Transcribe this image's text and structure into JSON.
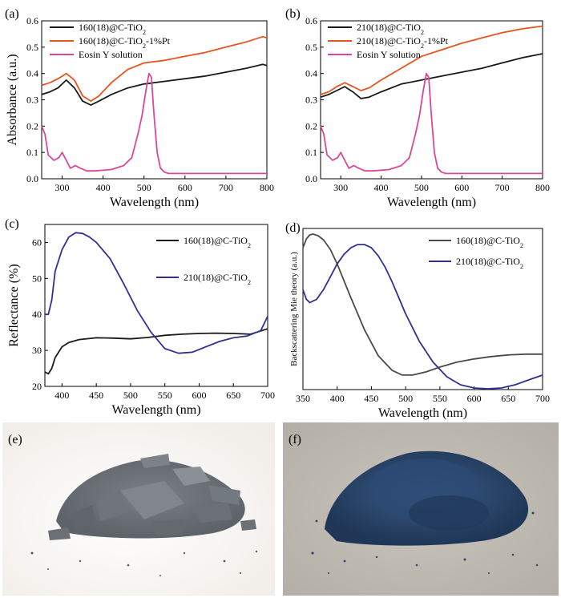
{
  "chart_data": [
    {
      "id": "a",
      "panel_label": "(a)",
      "type": "line",
      "xlabel": "Wavelength (nm)",
      "ylabel": "Absorbance (a.u.)",
      "xlim": [
        250,
        800
      ],
      "ylim": [
        0,
        0.6
      ],
      "xticks": [
        300,
        400,
        500,
        600,
        700,
        800
      ],
      "yticks": [
        0.0,
        0.1,
        0.2,
        0.3,
        0.4,
        0.5,
        0.6
      ],
      "ytick_labels": [
        "0.0",
        "0.1",
        "0.2",
        "0.3",
        "0.4",
        "0.5",
        "0.6"
      ],
      "legend": "top-left",
      "series": [
        {
          "name": "160(18)@C-TiO",
          "name_sub": "2",
          "color": "#1a1a1a",
          "x": [
            250,
            270,
            290,
            310,
            330,
            350,
            370,
            390,
            420,
            460,
            500,
            550,
            600,
            650,
            700,
            750,
            790,
            800
          ],
          "y": [
            0.32,
            0.33,
            0.345,
            0.375,
            0.345,
            0.295,
            0.28,
            0.295,
            0.32,
            0.345,
            0.36,
            0.37,
            0.38,
            0.39,
            0.405,
            0.42,
            0.435,
            0.43
          ]
        },
        {
          "name": "160(18)@C-TiO",
          "name_sub": "2",
          "name_suffix": "-1%Pt",
          "color": "#e8541e",
          "x": [
            250,
            270,
            290,
            310,
            330,
            350,
            370,
            390,
            420,
            460,
            500,
            550,
            600,
            650,
            700,
            750,
            790,
            800
          ],
          "y": [
            0.355,
            0.365,
            0.38,
            0.4,
            0.375,
            0.315,
            0.295,
            0.315,
            0.365,
            0.415,
            0.44,
            0.45,
            0.465,
            0.48,
            0.5,
            0.52,
            0.54,
            0.535
          ]
        },
        {
          "name": "Eosin Y solution",
          "color": "#d9479a",
          "x": [
            250,
            258,
            266,
            280,
            292,
            300,
            310,
            320,
            332,
            345,
            360,
            380,
            420,
            450,
            470,
            485,
            495,
            505,
            512,
            518,
            524,
            532,
            540,
            550,
            560,
            600,
            700,
            800
          ],
          "y": [
            0.2,
            0.17,
            0.09,
            0.07,
            0.08,
            0.1,
            0.07,
            0.04,
            0.05,
            0.04,
            0.03,
            0.03,
            0.035,
            0.05,
            0.08,
            0.17,
            0.24,
            0.34,
            0.4,
            0.385,
            0.25,
            0.1,
            0.04,
            0.025,
            0.02,
            0.02,
            0.02,
            0.02
          ]
        }
      ]
    },
    {
      "id": "b",
      "panel_label": "(b)",
      "type": "line",
      "xlabel": "Wavelength (nm)",
      "ylabel": "",
      "xlim": [
        250,
        800
      ],
      "ylim": [
        0,
        0.6
      ],
      "xticks": [
        300,
        400,
        500,
        600,
        700,
        800
      ],
      "yticks": [
        0.0,
        0.1,
        0.2,
        0.3,
        0.4,
        0.5,
        0.6
      ],
      "ytick_labels": [
        "0.0",
        "0.1",
        "0.2",
        "0.3",
        "0.4",
        "0.5",
        "0.6"
      ],
      "legend": "top-left",
      "series": [
        {
          "name": "210(18)@C-TiO",
          "name_sub": "2",
          "color": "#1a1a1a",
          "x": [
            250,
            270,
            290,
            310,
            330,
            350,
            370,
            400,
            450,
            500,
            550,
            600,
            650,
            700,
            750,
            800
          ],
          "y": [
            0.31,
            0.32,
            0.335,
            0.35,
            0.33,
            0.305,
            0.31,
            0.33,
            0.36,
            0.375,
            0.39,
            0.405,
            0.42,
            0.44,
            0.46,
            0.475
          ]
        },
        {
          "name": "210(18)@C-TiO",
          "name_sub": "2",
          "name_suffix": "-1%Pt",
          "color": "#e8541e",
          "x": [
            250,
            270,
            290,
            310,
            330,
            350,
            370,
            400,
            450,
            500,
            550,
            600,
            650,
            700,
            750,
            800
          ],
          "y": [
            0.32,
            0.33,
            0.35,
            0.365,
            0.35,
            0.335,
            0.345,
            0.375,
            0.42,
            0.465,
            0.49,
            0.515,
            0.535,
            0.555,
            0.57,
            0.58
          ]
        },
        {
          "name": "Eosin Y solution",
          "color": "#d9479a",
          "x": [
            250,
            258,
            266,
            280,
            292,
            300,
            310,
            320,
            332,
            345,
            360,
            380,
            420,
            450,
            470,
            485,
            495,
            505,
            512,
            518,
            524,
            532,
            540,
            550,
            560,
            600,
            700,
            800
          ],
          "y": [
            0.2,
            0.17,
            0.09,
            0.07,
            0.08,
            0.1,
            0.07,
            0.04,
            0.05,
            0.04,
            0.03,
            0.03,
            0.035,
            0.05,
            0.08,
            0.17,
            0.24,
            0.34,
            0.4,
            0.385,
            0.25,
            0.1,
            0.04,
            0.025,
            0.02,
            0.02,
            0.02,
            0.02
          ]
        }
      ]
    },
    {
      "id": "c",
      "panel_label": "(c)",
      "type": "line",
      "xlabel": "Wavelength (nm)",
      "ylabel": "Reflectance (%)",
      "xlim": [
        375,
        700
      ],
      "ylim": [
        20,
        65
      ],
      "xticks": [
        400,
        450,
        500,
        550,
        600,
        650,
        700
      ],
      "yticks": [
        20,
        30,
        40,
        50,
        60
      ],
      "ytick_labels": [
        "20",
        "30",
        "40",
        "50",
        "60"
      ],
      "legend": "top-right",
      "series": [
        {
          "name": "160(18)@C-TiO",
          "name_sub": "2",
          "color": "#1a1a1a",
          "x": [
            375,
            380,
            385,
            390,
            400,
            410,
            425,
            450,
            475,
            500,
            525,
            550,
            575,
            600,
            625,
            650,
            675,
            700
          ],
          "y": [
            24,
            23.5,
            25,
            28,
            31,
            32.2,
            33,
            33.5,
            33.4,
            33.2,
            33.6,
            34.2,
            34.5,
            34.7,
            34.8,
            34.7,
            34.5,
            36
          ]
        },
        {
          "name": "210(18)@C-TiO",
          "name_sub": "2",
          "color": "#2e3192",
          "x": [
            375,
            380,
            385,
            390,
            400,
            410,
            420,
            430,
            440,
            450,
            470,
            490,
            510,
            530,
            550,
            570,
            590,
            610,
            630,
            650,
            670,
            690,
            700
          ],
          "y": [
            40,
            40,
            44,
            52,
            58,
            61.5,
            62.7,
            62.5,
            61.5,
            60,
            55.5,
            48.5,
            41,
            35,
            30.5,
            29.2,
            29.5,
            31,
            32.5,
            33.5,
            34,
            35.5,
            39.5
          ]
        }
      ]
    },
    {
      "id": "d",
      "panel_label": "(d)",
      "type": "line",
      "xlabel": "Wavelength (nm)",
      "ylabel": "Backscattering Mie theory (a.u.)",
      "xlim": [
        350,
        700
      ],
      "ylim": [
        0,
        1
      ],
      "xticks": [
        350,
        400,
        450,
        500,
        550,
        600,
        650,
        700
      ],
      "legend": "top-right",
      "series": [
        {
          "name": "160(18)@C-TiO",
          "name_sub": "2",
          "color": "#4a4a4a",
          "x": [
            350,
            355,
            360,
            365,
            372,
            380,
            390,
            400,
            420,
            440,
            460,
            480,
            495,
            510,
            530,
            550,
            575,
            600,
            625,
            650,
            675,
            700
          ],
          "y": [
            0.88,
            0.935,
            0.96,
            0.965,
            0.955,
            0.93,
            0.87,
            0.78,
            0.57,
            0.37,
            0.21,
            0.12,
            0.09,
            0.09,
            0.11,
            0.14,
            0.17,
            0.19,
            0.205,
            0.215,
            0.22,
            0.22
          ]
        },
        {
          "name": "210(18)@C-TiO",
          "name_sub": "2",
          "color": "#2e3192",
          "x": [
            350,
            355,
            360,
            370,
            380,
            390,
            400,
            410,
            420,
            430,
            440,
            450,
            460,
            470,
            480,
            490,
            500,
            520,
            540,
            560,
            580,
            600,
            620,
            640,
            660,
            680,
            700
          ],
          "y": [
            0.62,
            0.56,
            0.54,
            0.56,
            0.62,
            0.7,
            0.78,
            0.84,
            0.88,
            0.9,
            0.9,
            0.88,
            0.83,
            0.76,
            0.67,
            0.57,
            0.47,
            0.3,
            0.17,
            0.08,
            0.03,
            0.01,
            0.005,
            0.01,
            0.03,
            0.06,
            0.09
          ]
        }
      ]
    }
  ],
  "photos": [
    {
      "panel_label": "(e)",
      "description_color": "#6b7177"
    },
    {
      "panel_label": "(f)",
      "description_color": "#2f4f7a"
    }
  ]
}
